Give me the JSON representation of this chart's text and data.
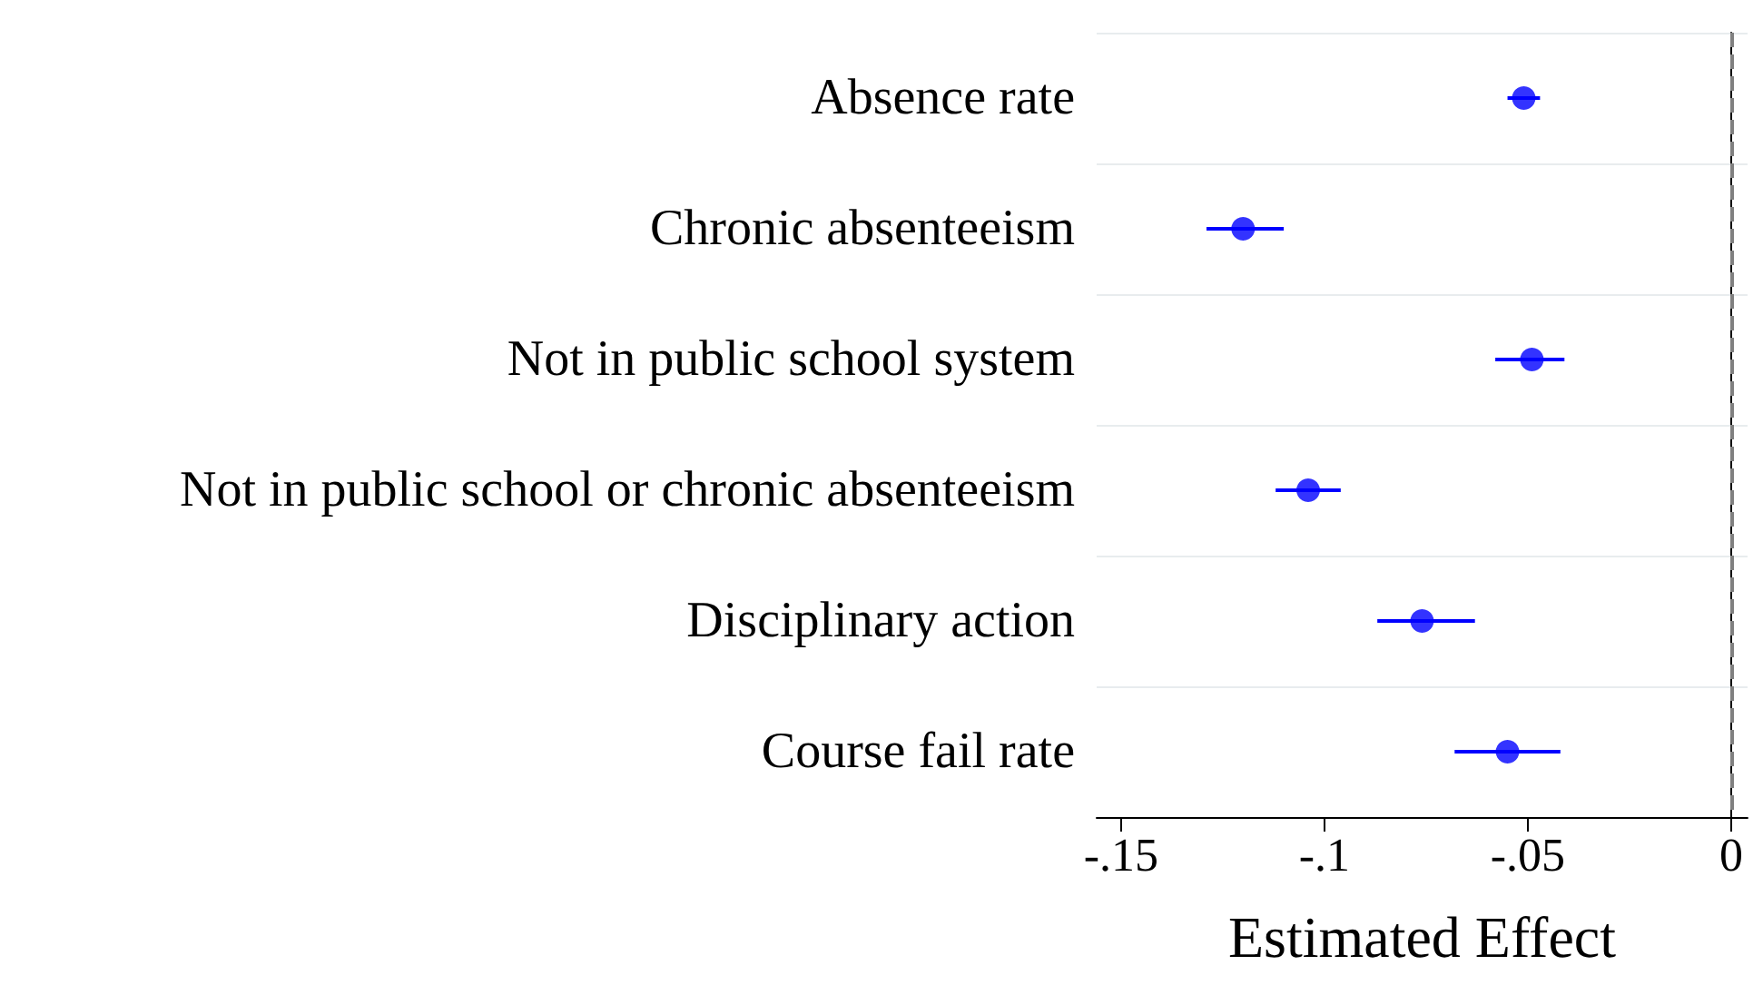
{
  "chart_data": {
    "type": "scatter",
    "orientation": "horizontal",
    "xlabel": "Estimated Effect",
    "categories": [
      "Absence rate",
      "Chronic absenteeism",
      "Not in public school system",
      "Not in public school or chronic absenteeism",
      "Disciplinary action",
      "Course fail rate"
    ],
    "series": [
      {
        "color": "#0000ff",
        "values": [
          -0.051,
          -0.12,
          -0.049,
          -0.104,
          -0.076,
          -0.055
        ],
        "errors": [
          [
            -0.055,
            -0.047
          ],
          [
            -0.129,
            -0.11
          ],
          [
            -0.058,
            -0.041
          ],
          [
            -0.112,
            -0.096
          ],
          [
            -0.087,
            -0.063
          ],
          [
            -0.068,
            -0.042
          ]
        ]
      }
    ],
    "xlim": [
      -0.156,
      0.004
    ],
    "xticks": [
      {
        "value": -0.15,
        "label": "-.15"
      },
      {
        "value": -0.1,
        "label": "-.1"
      },
      {
        "value": -0.05,
        "label": "-.05"
      },
      {
        "value": 0,
        "label": "0"
      }
    ],
    "ref_lines": [
      {
        "axis": "x",
        "value": 0,
        "color": "#808080",
        "line_style": "dashed"
      }
    ],
    "grid": "y",
    "marker": "circle"
  }
}
